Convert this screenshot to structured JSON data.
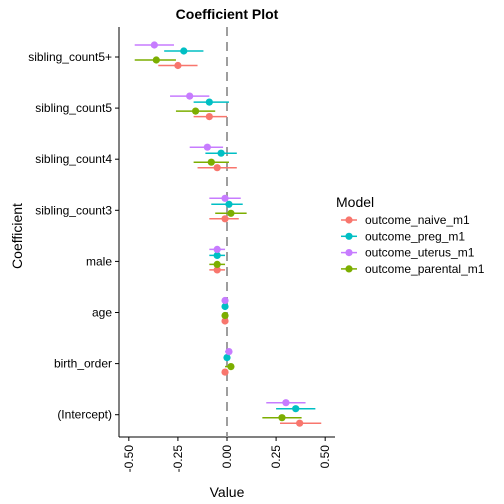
{
  "chart_data": {
    "type": "scatter",
    "title": "Coefficient Plot",
    "xlabel": "Value",
    "ylabel": "Coefficient",
    "xlim": [
      -0.55,
      0.55
    ],
    "xticks": [
      -0.5,
      -0.25,
      0.0,
      0.25,
      0.5
    ],
    "xtick_labels": [
      "-0.50",
      "-0.25",
      "0.00",
      "0.25",
      "0.50"
    ],
    "reference_line": 0,
    "grid": false,
    "legend_position": "right",
    "legend_title": "Model",
    "categories": [
      "sibling_count5+",
      "sibling_count5",
      "sibling_count4",
      "sibling_count3",
      "male",
      "age",
      "birth_order",
      "(Intercept)"
    ],
    "series": [
      {
        "name": "outcome_naive_m1",
        "color": "#F8766D",
        "values": [
          -0.25,
          -0.09,
          -0.05,
          -0.01,
          -0.05,
          -0.01,
          -0.01,
          0.37
        ],
        "ci_low": [
          -0.35,
          -0.17,
          -0.15,
          -0.09,
          -0.09,
          -0.02,
          -0.02,
          0.27
        ],
        "ci_high": [
          -0.15,
          0.0,
          0.05,
          0.06,
          -0.01,
          0.0,
          0.0,
          0.48
        ]
      },
      {
        "name": "outcome_preg_m1",
        "color": "#00BFC4",
        "values": [
          -0.22,
          -0.09,
          -0.03,
          0.01,
          -0.05,
          -0.01,
          0.0,
          0.35
        ],
        "ci_low": [
          -0.32,
          -0.17,
          -0.11,
          -0.08,
          -0.09,
          -0.02,
          -0.01,
          0.25
        ],
        "ci_high": [
          -0.12,
          0.01,
          0.05,
          0.08,
          -0.01,
          0.0,
          0.01,
          0.45
        ]
      },
      {
        "name": "outcome_uterus_m1",
        "color": "#C77CFF",
        "values": [
          -0.37,
          -0.19,
          -0.1,
          -0.01,
          -0.05,
          -0.01,
          0.01,
          0.3
        ],
        "ci_low": [
          -0.47,
          -0.29,
          -0.19,
          -0.09,
          -0.09,
          -0.02,
          -0.01,
          0.2
        ],
        "ci_high": [
          -0.27,
          -0.09,
          -0.02,
          0.07,
          -0.01,
          0.0,
          0.02,
          0.4
        ]
      },
      {
        "name": "outcome_parental_m1",
        "color": "#7CAE00",
        "values": [
          -0.36,
          -0.16,
          -0.08,
          0.02,
          -0.05,
          -0.01,
          0.02,
          0.28
        ],
        "ci_low": [
          -0.47,
          -0.26,
          -0.17,
          -0.06,
          -0.09,
          -0.02,
          -0.01,
          0.18
        ],
        "ci_high": [
          -0.26,
          -0.06,
          0.01,
          0.1,
          -0.01,
          0.0,
          0.03,
          0.38
        ]
      }
    ]
  }
}
